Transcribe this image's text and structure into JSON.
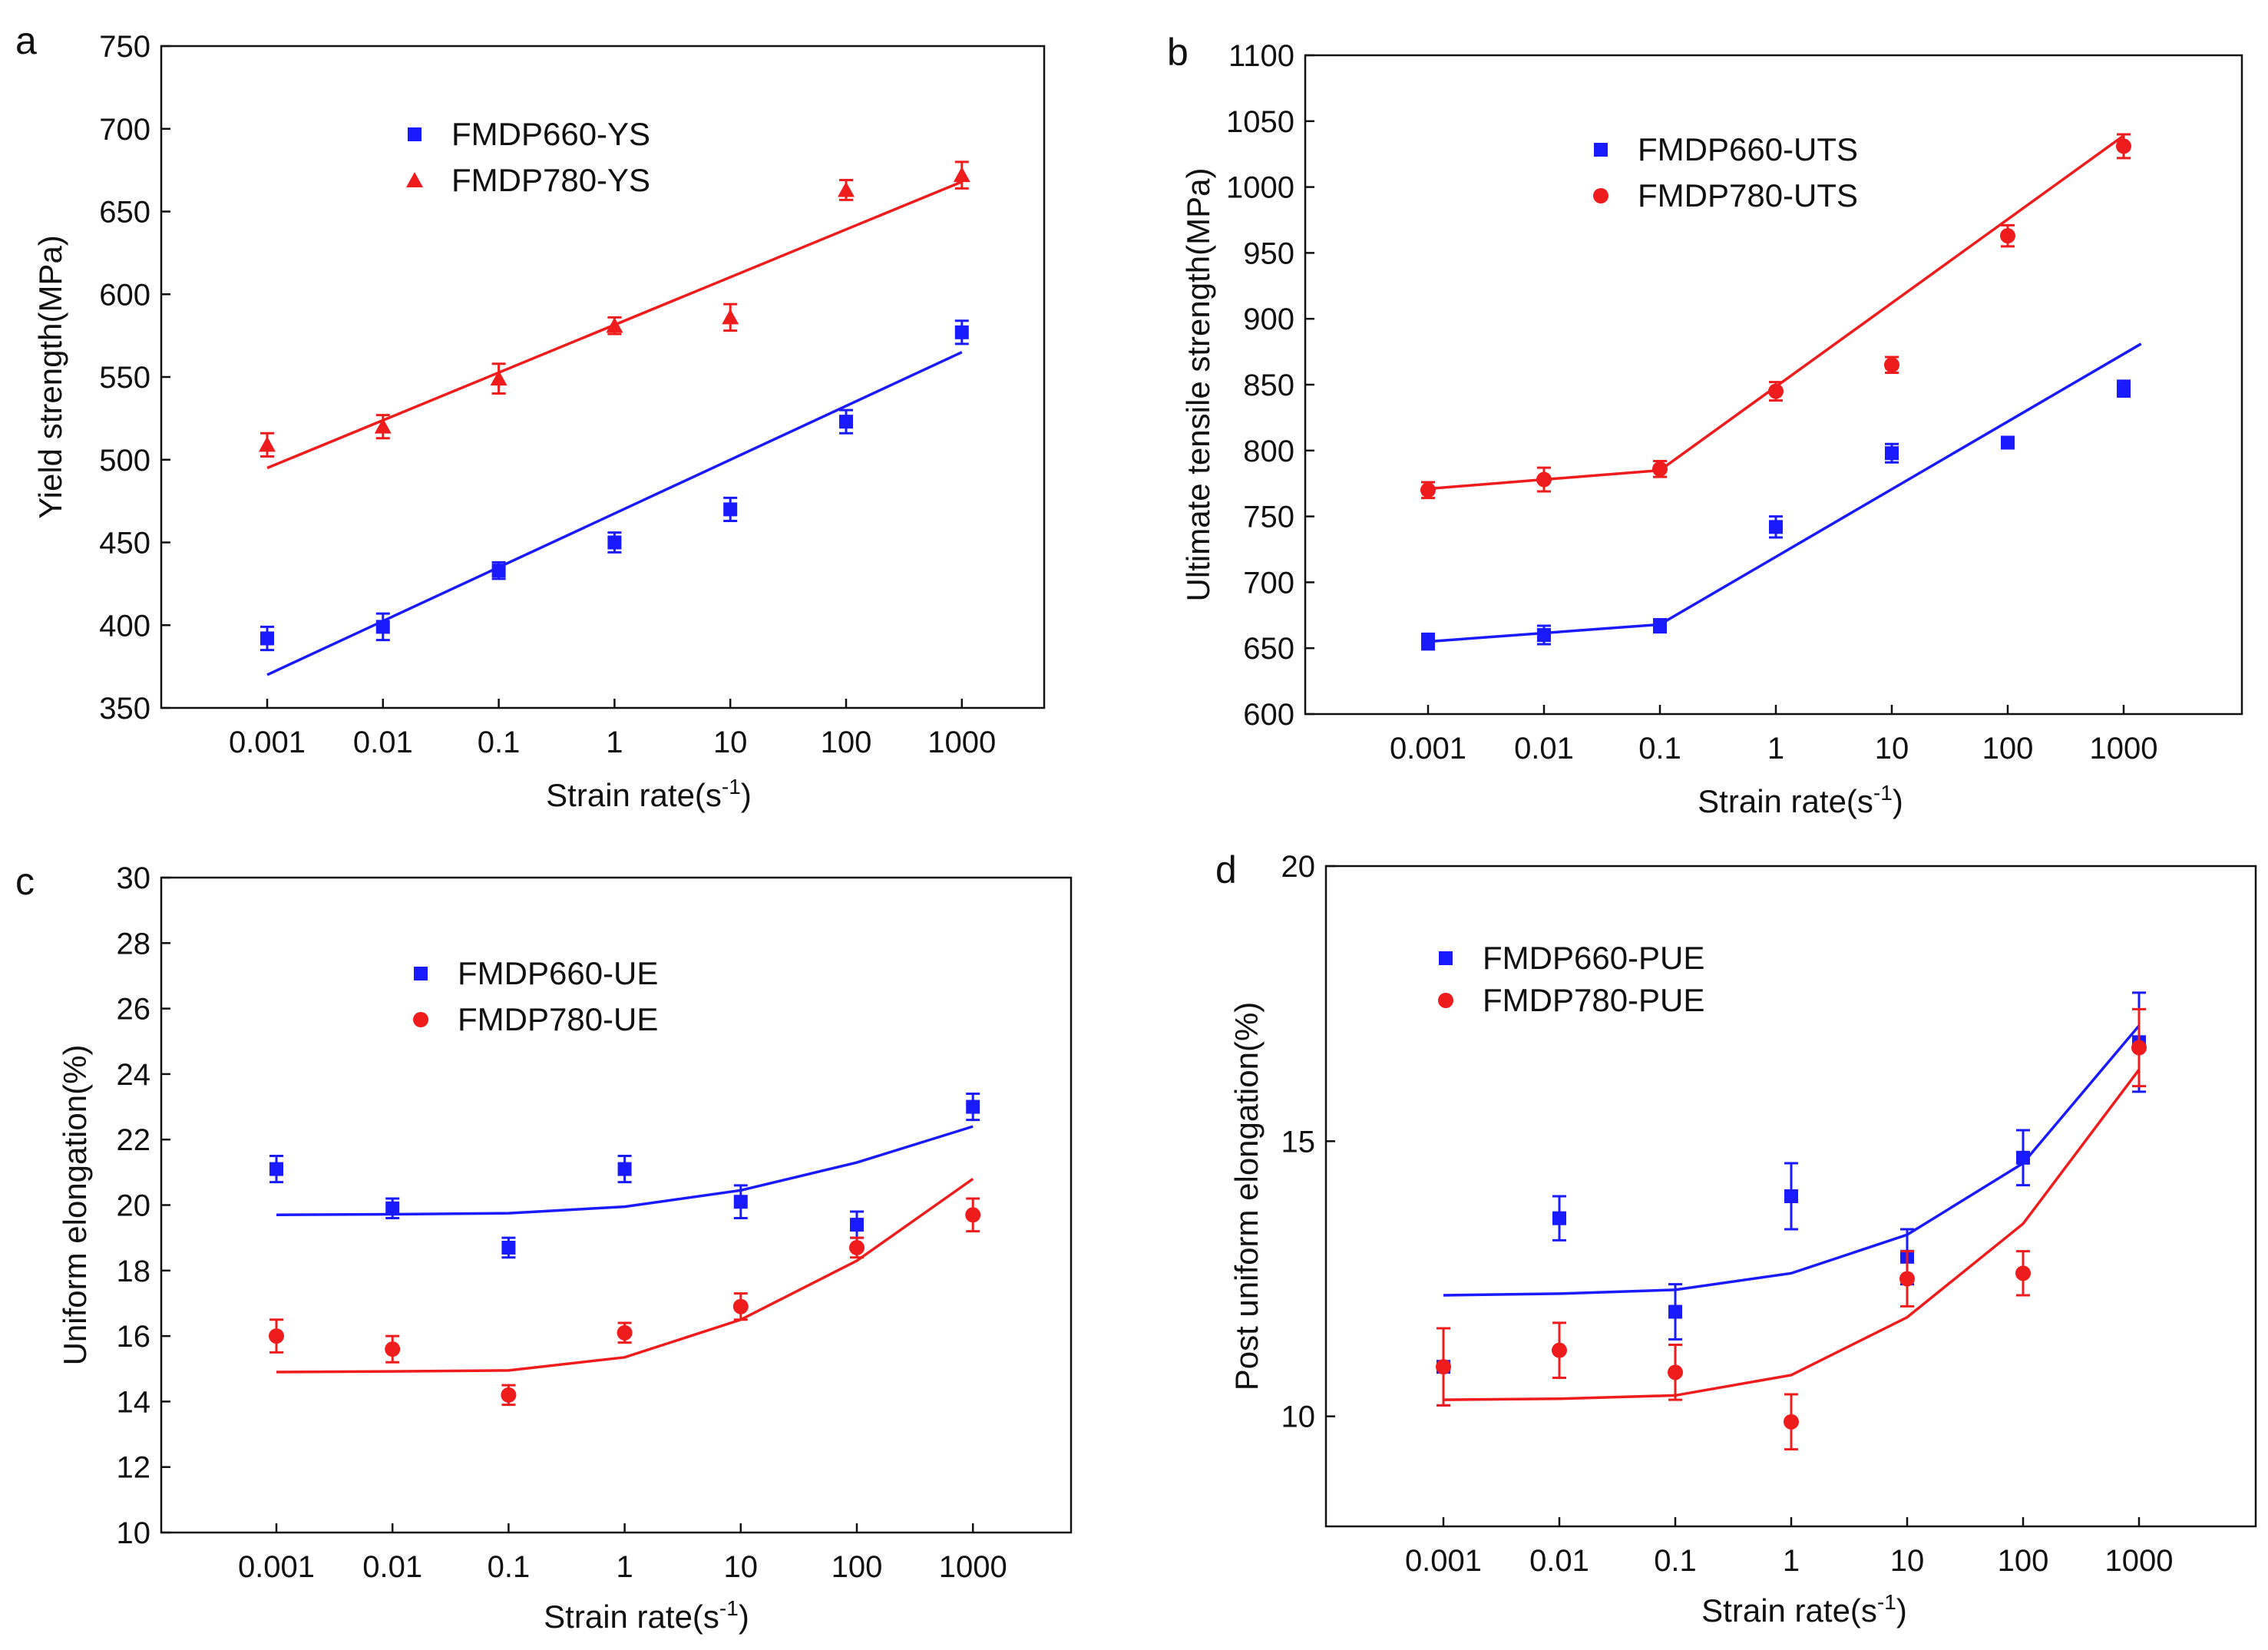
{
  "chart_data": [
    {
      "panel": "a",
      "type": "scatter",
      "xlabel": "Strain rate(s",
      "xlabel_sup": "-1",
      "xlabel_end": ")",
      "ylabel": "Yield strength(MPa)",
      "categories": [
        "0.001",
        "0.01",
        "0.1",
        "1",
        "10",
        "100",
        "1000"
      ],
      "ylim": [
        350,
        750
      ],
      "yticks": [
        350,
        400,
        450,
        500,
        550,
        600,
        650,
        700,
        750
      ],
      "legend_position": "top-center",
      "series": [
        {
          "name": "FMDP660-YS",
          "color": "#1a1aff",
          "marker": "square",
          "values": [
            392,
            399,
            433,
            450,
            470,
            523,
            577
          ],
          "errors": [
            7,
            8,
            5,
            6,
            7,
            7,
            7
          ],
          "fit": [
            [
              0,
              370
            ],
            [
              6,
              565
            ]
          ]
        },
        {
          "name": "FMDP780-YS",
          "color": "#ee1c1c",
          "marker": "triangle",
          "values": [
            509,
            520,
            549,
            581,
            586,
            663,
            672
          ],
          "errors": [
            7,
            7,
            9,
            5,
            8,
            6,
            8
          ],
          "fit": [
            [
              0,
              495
            ],
            [
              6,
              668
            ]
          ]
        }
      ]
    },
    {
      "panel": "b",
      "type": "scatter",
      "xlabel": "Strain rate(s",
      "xlabel_sup": "-1",
      "xlabel_end": ")",
      "ylabel": "Ultimate tensile strength(MPa)",
      "categories": [
        "0.001",
        "0.01",
        "0.1",
        "1",
        "10",
        "100",
        "1000"
      ],
      "ylim": [
        600,
        1100
      ],
      "yticks": [
        600,
        650,
        700,
        750,
        800,
        850,
        900,
        950,
        1000,
        1050,
        1100
      ],
      "legend_position": "top-center",
      "series": [
        {
          "name": "FMDP660-UTS",
          "color": "#1a1aff",
          "marker": "square",
          "values": [
            655,
            660,
            667,
            742,
            798,
            806,
            847
          ],
          "errors": [
            6,
            7,
            5,
            8,
            7,
            4,
            6
          ],
          "fit": [
            [
              0,
              655
            ],
            [
              2,
              668
            ],
            [
              6.15,
              881
            ]
          ]
        },
        {
          "name": "FMDP780-UTS",
          "color": "#ee1c1c",
          "marker": "circle",
          "values": [
            770,
            778,
            786,
            845,
            865,
            963,
            1031
          ],
          "errors": [
            6,
            9,
            6,
            7,
            6,
            8,
            9
          ],
          "fit": [
            [
              0,
              771
            ],
            [
              2,
              785
            ],
            [
              6,
              1039
            ]
          ]
        }
      ]
    },
    {
      "panel": "c",
      "type": "scatter",
      "xlabel": "Strain rate(s",
      "xlabel_sup": "-1",
      "xlabel_end": ")",
      "ylabel": "Uniform elongation(%)",
      "categories": [
        "0.001",
        "0.01",
        "0.1",
        "1",
        "10",
        "100",
        "1000"
      ],
      "ylim": [
        10,
        30
      ],
      "yticks": [
        10,
        12,
        14,
        16,
        18,
        20,
        22,
        24,
        26,
        28,
        30
      ],
      "legend_position": "top-center",
      "series": [
        {
          "name": "FMDP660-UE",
          "color": "#1a1aff",
          "marker": "square",
          "values": [
            21.1,
            19.9,
            18.7,
            21.1,
            20.1,
            19.4,
            23.0
          ],
          "errors": [
            0.4,
            0.3,
            0.3,
            0.4,
            0.5,
            0.4,
            0.4
          ],
          "fit": [
            [
              0,
              19.7
            ],
            [
              1,
              19.72
            ],
            [
              2,
              19.75
            ],
            [
              3,
              19.95
            ],
            [
              4,
              20.45
            ],
            [
              5,
              21.3
            ],
            [
              6,
              22.4
            ]
          ]
        },
        {
          "name": "FMDP780-UE",
          "color": "#ee1c1c",
          "marker": "circle",
          "values": [
            16.0,
            15.6,
            14.2,
            16.1,
            16.9,
            18.7,
            19.7
          ],
          "errors": [
            0.5,
            0.4,
            0.3,
            0.3,
            0.4,
            0.3,
            0.5
          ],
          "fit": [
            [
              0,
              14.9
            ],
            [
              1,
              14.92
            ],
            [
              2,
              14.95
            ],
            [
              3,
              15.35
            ],
            [
              4,
              16.5
            ],
            [
              5,
              18.3
            ],
            [
              6,
              20.8
            ]
          ]
        }
      ]
    },
    {
      "panel": "d",
      "type": "scatter",
      "xlabel": "Strain rate(s",
      "xlabel_sup": "-1",
      "xlabel_end": ")",
      "ylabel": "Post uniform elongation(%)",
      "categories": [
        "0.001",
        "0.01",
        "0.1",
        "1",
        "10",
        "100",
        "1000"
      ],
      "ylim": [
        8,
        20
      ],
      "yticks": [
        10,
        15,
        20
      ],
      "legend_position": "top-left",
      "series": [
        {
          "name": "FMDP660-PUE",
          "color": "#1a1aff",
          "marker": "square",
          "values": [
            10.9,
            13.6,
            11.9,
            14.0,
            12.9,
            14.7,
            16.8
          ],
          "errors": [
            0.7,
            0.4,
            0.5,
            0.6,
            0.5,
            0.5,
            0.9
          ],
          "fit": [
            [
              0,
              12.2
            ],
            [
              1,
              12.23
            ],
            [
              2,
              12.3
            ],
            [
              3,
              12.6
            ],
            [
              4,
              13.3
            ],
            [
              5,
              14.6
            ],
            [
              6,
              17.1
            ]
          ]
        },
        {
          "name": "FMDP780-PUE",
          "color": "#ee1c1c",
          "marker": "circle",
          "values": [
            10.9,
            11.2,
            10.8,
            9.9,
            12.5,
            12.6,
            16.7
          ],
          "errors": [
            0.7,
            0.5,
            0.5,
            0.5,
            0.5,
            0.4,
            0.7
          ],
          "fit": [
            [
              0,
              10.3
            ],
            [
              1,
              10.32
            ],
            [
              2,
              10.38
            ],
            [
              3,
              10.75
            ],
            [
              4,
              11.8
            ],
            [
              5,
              13.5
            ],
            [
              6,
              16.3
            ]
          ]
        }
      ]
    }
  ]
}
